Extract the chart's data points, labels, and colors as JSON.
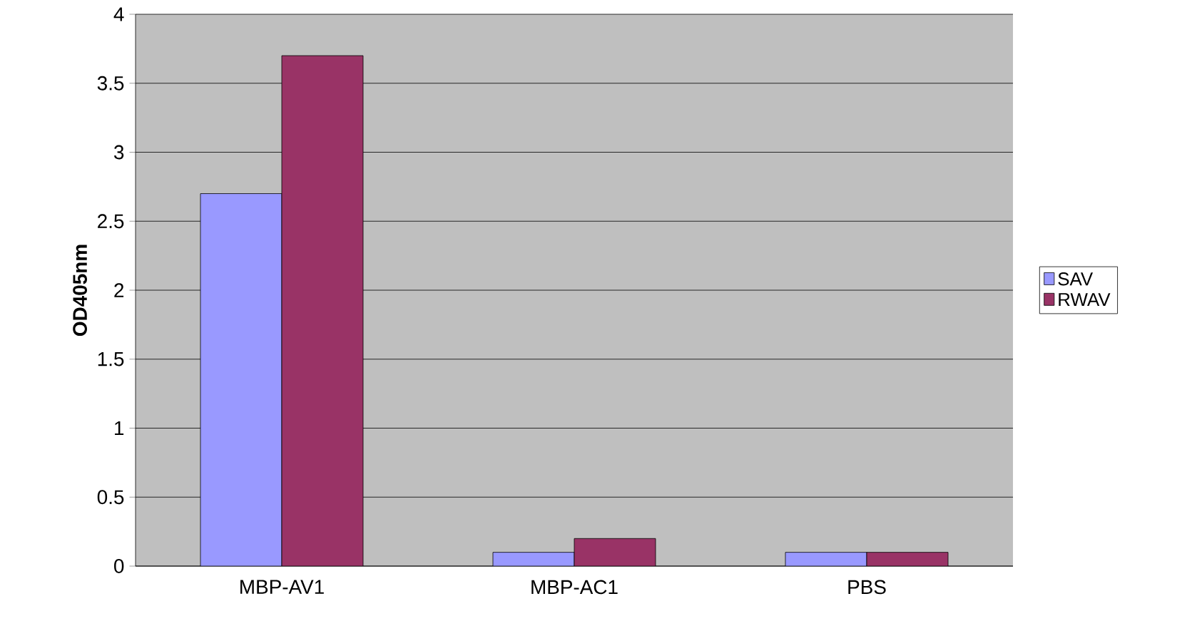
{
  "chart_data": {
    "type": "bar",
    "ylabel": "OD405nm",
    "categories": [
      "MBP-AV1",
      "MBP-AC1",
      "PBS"
    ],
    "series": [
      {
        "name": "SAV",
        "color": "#9999ff",
        "values": [
          2.7,
          0.1,
          0.1
        ]
      },
      {
        "name": "RWAV",
        "color": "#993366",
        "values": [
          3.7,
          0.2,
          0.1
        ]
      }
    ],
    "ylim": [
      0,
      4
    ],
    "yticks": [
      0,
      0.5,
      1,
      1.5,
      2,
      2.5,
      3,
      3.5,
      4
    ],
    "grid": "y",
    "legend": "right"
  }
}
